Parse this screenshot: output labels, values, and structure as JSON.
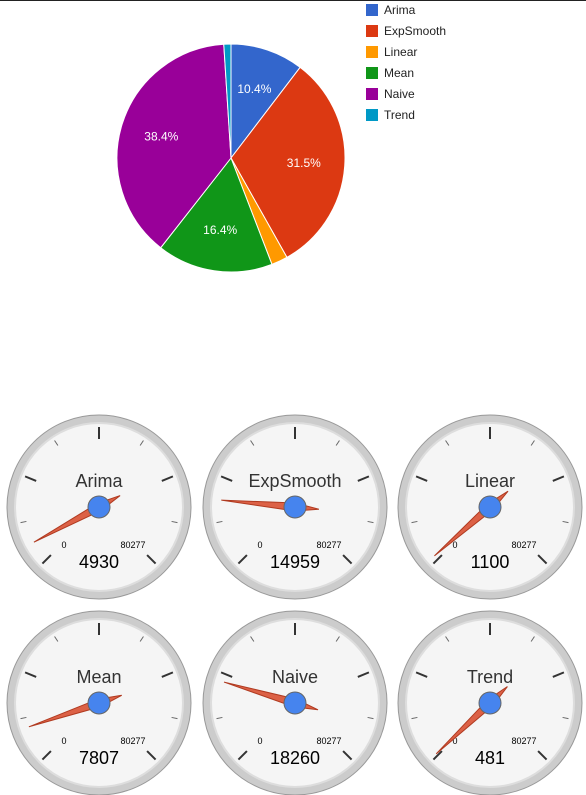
{
  "chart_data": [
    {
      "type": "pie",
      "title": "",
      "slices": [
        {
          "label": "Arima",
          "value": 4930,
          "percent_label": "10.4%",
          "color": "#3366cc"
        },
        {
          "label": "ExpSmooth",
          "value": 14959,
          "percent_label": "31.5%",
          "color": "#dc3912"
        },
        {
          "label": "Linear",
          "value": 1100,
          "percent_label": "",
          "color": "#ff9900"
        },
        {
          "label": "Mean",
          "value": 7807,
          "percent_label": "16.4%",
          "color": "#109618"
        },
        {
          "label": "Naive",
          "value": 18260,
          "percent_label": "38.4%",
          "color": "#990099"
        },
        {
          "label": "Trend",
          "value": 481,
          "percent_label": "",
          "color": "#0099c6"
        }
      ],
      "legend": "right"
    },
    {
      "type": "gauge",
      "min": 0,
      "max": 80277,
      "min_label": "0",
      "max_label": "80277",
      "gauges": [
        {
          "name": "Arima",
          "value": 4930,
          "value_label": "4930"
        },
        {
          "name": "ExpSmooth",
          "value": 14959,
          "value_label": "14959"
        },
        {
          "name": "Linear",
          "value": 1100,
          "value_label": "1100"
        },
        {
          "name": "Mean",
          "value": 7807,
          "value_label": "7807"
        },
        {
          "name": "Naive",
          "value": 18260,
          "value_label": "18260"
        },
        {
          "name": "Trend",
          "value": 481,
          "value_label": "481"
        }
      ]
    }
  ]
}
